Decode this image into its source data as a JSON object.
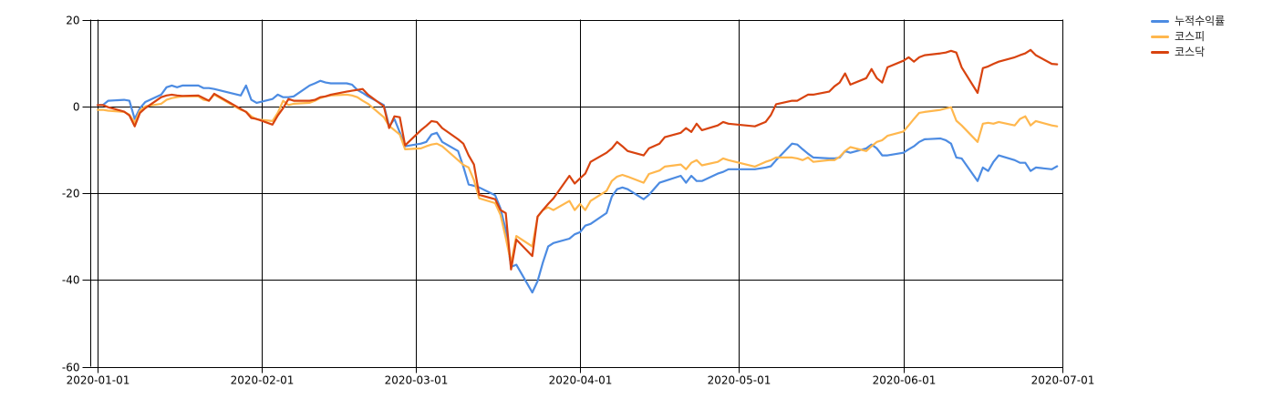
{
  "chart_data": {
    "type": "line",
    "title": "",
    "xlabel": "",
    "ylabel": "",
    "grid": true,
    "background": "#ffffff",
    "grid_color": "#000000",
    "legend_position": "top-right",
    "ylim": [
      -60,
      20
    ],
    "yticks": [
      20,
      0,
      -20,
      -40,
      -60
    ],
    "ytick_labels": [
      "20",
      "0",
      "-20",
      "-40",
      "-60"
    ],
    "xticks": [
      "2020-01-01",
      "2020-02-01",
      "2020-03-01",
      "2020-04-01",
      "2020-05-01",
      "2020-06-01",
      "2020-07-01"
    ],
    "x": [
      "2020-01-01",
      "2020-01-02",
      "2020-01-03",
      "2020-01-06",
      "2020-01-07",
      "2020-01-08",
      "2020-01-09",
      "2020-01-10",
      "2020-01-13",
      "2020-01-14",
      "2020-01-15",
      "2020-01-16",
      "2020-01-17",
      "2020-01-20",
      "2020-01-21",
      "2020-01-22",
      "2020-01-23",
      "2020-01-28",
      "2020-01-29",
      "2020-01-30",
      "2020-01-31",
      "2020-02-03",
      "2020-02-04",
      "2020-02-05",
      "2020-02-06",
      "2020-02-07",
      "2020-02-10",
      "2020-02-11",
      "2020-02-12",
      "2020-02-13",
      "2020-02-14",
      "2020-02-17",
      "2020-02-18",
      "2020-02-19",
      "2020-02-20",
      "2020-02-21",
      "2020-02-24",
      "2020-02-25",
      "2020-02-26",
      "2020-02-27",
      "2020-02-28",
      "2020-03-02",
      "2020-03-03",
      "2020-03-04",
      "2020-03-05",
      "2020-03-06",
      "2020-03-09",
      "2020-03-10",
      "2020-03-11",
      "2020-03-12",
      "2020-03-13",
      "2020-03-16",
      "2020-03-17",
      "2020-03-18",
      "2020-03-19",
      "2020-03-20",
      "2020-03-23",
      "2020-03-24",
      "2020-03-25",
      "2020-03-26",
      "2020-03-27",
      "2020-03-30",
      "2020-03-31",
      "2020-04-01",
      "2020-04-02",
      "2020-04-03",
      "2020-04-06",
      "2020-04-07",
      "2020-04-08",
      "2020-04-09",
      "2020-04-10",
      "2020-04-13",
      "2020-04-14",
      "2020-04-16",
      "2020-04-17",
      "2020-04-20",
      "2020-04-21",
      "2020-04-22",
      "2020-04-23",
      "2020-04-24",
      "2020-04-27",
      "2020-04-28",
      "2020-04-29",
      "2020-05-04",
      "2020-05-06",
      "2020-05-07",
      "2020-05-08",
      "2020-05-11",
      "2020-05-12",
      "2020-05-13",
      "2020-05-14",
      "2020-05-15",
      "2020-05-18",
      "2020-05-19",
      "2020-05-20",
      "2020-05-21",
      "2020-05-22",
      "2020-05-25",
      "2020-05-26",
      "2020-05-27",
      "2020-05-28",
      "2020-05-29",
      "2020-06-01",
      "2020-06-02",
      "2020-06-03",
      "2020-06-04",
      "2020-06-05",
      "2020-06-08",
      "2020-06-09",
      "2020-06-10",
      "2020-06-11",
      "2020-06-12",
      "2020-06-15",
      "2020-06-16",
      "2020-06-17",
      "2020-06-18",
      "2020-06-19",
      "2020-06-22",
      "2020-06-23",
      "2020-06-24",
      "2020-06-25",
      "2020-06-26",
      "2020-06-29",
      "2020-06-30"
    ],
    "series": [
      {
        "id": "cumulative-return",
        "name": "누적수익률",
        "color": "#4c8be2",
        "values": [
          0.3,
          0.3,
          1.3,
          1.5,
          1.3,
          -2.9,
          -0.4,
          1.0,
          2.7,
          4.4,
          4.8,
          4.4,
          4.8,
          4.8,
          4.2,
          4.2,
          4.0,
          2.5,
          4.8,
          1.5,
          0.8,
          1.7,
          2.7,
          2.1,
          2.1,
          2.3,
          4.8,
          5.3,
          5.9,
          5.5,
          5.3,
          5.3,
          5.0,
          3.8,
          3.1,
          2.3,
          0.3,
          -4.6,
          -2.9,
          -6.0,
          -9.2,
          -8.6,
          -8.2,
          -6.5,
          -6.1,
          -8.2,
          -10.3,
          -13.9,
          -18.0,
          -18.3,
          -18.7,
          -20.5,
          -23.5,
          -28.5,
          -37.0,
          -36.5,
          -42.9,
          -40.3,
          -36.0,
          -32.3,
          -31.5,
          -30.5,
          -29.5,
          -29.0,
          -27.5,
          -27.1,
          -24.6,
          -20.8,
          -19.1,
          -18.7,
          -19.1,
          -21.4,
          -20.4,
          -17.6,
          -17.2,
          -16.0,
          -17.6,
          -16.0,
          -17.2,
          -17.2,
          -15.5,
          -15.1,
          -14.5,
          -14.5,
          -14.1,
          -13.8,
          -12.4,
          -8.6,
          -8.8,
          -9.9,
          -10.9,
          -11.8,
          -12.0,
          -12.0,
          -11.8,
          -10.3,
          -10.7,
          -9.7,
          -8.8,
          -9.7,
          -11.3,
          -11.3,
          -10.7,
          -9.9,
          -9.2,
          -8.2,
          -7.6,
          -7.4,
          -7.8,
          -8.6,
          -11.8,
          -12.0,
          -17.2,
          -14.1,
          -14.9,
          -12.8,
          -11.3,
          -12.4,
          -13.0,
          -13.0,
          -14.9,
          -14.1,
          -14.5,
          -13.8
        ]
      },
      {
        "id": "kospi",
        "name": "코스피",
        "color": "#ffb74d",
        "values": [
          -0.8,
          -0.8,
          -1.0,
          -1.3,
          -1.9,
          -3.8,
          -1.0,
          0.0,
          0.6,
          1.5,
          1.9,
          2.1,
          2.3,
          2.3,
          1.5,
          1.3,
          2.7,
          -0.8,
          -1.2,
          -2.3,
          -3.0,
          -3.4,
          -1.5,
          1.3,
          0.3,
          0.6,
          0.8,
          1.3,
          1.9,
          2.3,
          2.5,
          2.7,
          2.5,
          2.1,
          1.3,
          0.6,
          -2.5,
          -4.5,
          -5.5,
          -6.5,
          -9.9,
          -9.7,
          -9.2,
          -8.8,
          -8.6,
          -9.2,
          -12.4,
          -13.5,
          -14.1,
          -17.0,
          -21.2,
          -22.3,
          -25.0,
          -30.3,
          -36.1,
          -29.9,
          -32.3,
          -25.5,
          -23.9,
          -23.3,
          -23.9,
          -21.8,
          -23.9,
          -22.5,
          -23.9,
          -21.8,
          -19.5,
          -17.2,
          -16.2,
          -15.8,
          -16.2,
          -17.6,
          -15.6,
          -14.8,
          -13.9,
          -13.4,
          -14.5,
          -13.0,
          -12.4,
          -13.6,
          -12.8,
          -12.0,
          -12.4,
          -13.9,
          -12.8,
          -12.4,
          -11.8,
          -11.8,
          -12.0,
          -12.4,
          -11.8,
          -12.8,
          -12.4,
          -12.4,
          -11.6,
          -10.3,
          -9.4,
          -10.3,
          -9.2,
          -8.2,
          -7.8,
          -6.8,
          -5.8,
          -4.4,
          -2.9,
          -1.5,
          -1.3,
          -0.8,
          -0.5,
          -0.2,
          -3.3,
          -4.4,
          -8.2,
          -4.0,
          -3.8,
          -4.0,
          -3.6,
          -4.4,
          -2.9,
          -2.3,
          -4.4,
          -3.4,
          -4.4,
          -4.6
        ]
      },
      {
        "id": "kosdaq",
        "name": "코스닥",
        "color": "#d8430f",
        "values": [
          0.3,
          0.3,
          -0.2,
          -1.2,
          -2.1,
          -4.6,
          -1.5,
          -0.4,
          2.1,
          2.5,
          2.7,
          2.5,
          2.4,
          2.5,
          1.9,
          1.3,
          2.9,
          -0.6,
          -1.3,
          -2.7,
          -2.9,
          -4.2,
          -2.1,
          -0.4,
          1.7,
          1.3,
          1.3,
          1.5,
          2.1,
          2.3,
          2.7,
          3.4,
          3.6,
          3.8,
          4.0,
          2.7,
          0.0,
          -5.0,
          -2.3,
          -2.5,
          -9.0,
          -5.5,
          -4.5,
          -3.4,
          -3.6,
          -5.0,
          -7.6,
          -8.6,
          -11.3,
          -13.4,
          -20.4,
          -21.4,
          -23.9,
          -24.6,
          -37.6,
          -30.7,
          -34.5,
          -25.4,
          -23.9,
          -22.5,
          -21.2,
          -16.0,
          -17.8,
          -16.6,
          -15.5,
          -12.8,
          -10.7,
          -9.7,
          -8.2,
          -9.2,
          -10.3,
          -11.3,
          -9.7,
          -8.6,
          -7.1,
          -6.1,
          -5.0,
          -5.9,
          -4.0,
          -5.5,
          -4.4,
          -3.6,
          -4.0,
          -4.6,
          -3.6,
          -2.0,
          0.5,
          1.3,
          1.3,
          2.0,
          2.7,
          2.7,
          3.4,
          4.6,
          5.5,
          7.6,
          5.0,
          6.5,
          8.6,
          6.5,
          5.5,
          9.0,
          10.5,
          11.3,
          10.3,
          11.3,
          11.8,
          12.2,
          12.4,
          12.8,
          12.4,
          9.0,
          3.1,
          8.8,
          9.2,
          9.8,
          10.3,
          11.3,
          11.8,
          12.2,
          13.0,
          11.8,
          9.8,
          9.7
        ]
      }
    ]
  }
}
